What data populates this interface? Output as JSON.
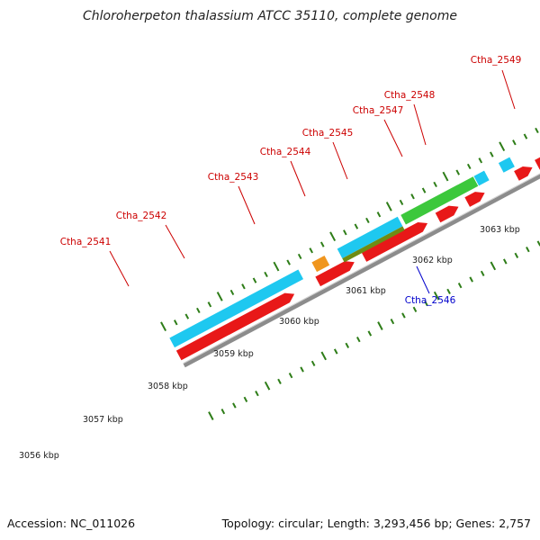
{
  "title": "Chloroherpeton thalassium ATCC 35110, complete genome",
  "footer": {
    "accession": "Accession: NC_011026",
    "summary": "Topology: circular; Length: 3,293,456 bp; Genes: 2,757"
  },
  "colors": {
    "background": "#ffffff",
    "backbone": "#8c8c8c",
    "tick": "#2e7d18",
    "label_red": "#cc0000",
    "label_blue": "#0000cc",
    "cds_red": "#e81818",
    "cyan": "#1ec8f0",
    "orange": "#f0961e",
    "green": "#3cc83c",
    "olive": "#6e8c14",
    "blue": "#1428e6",
    "slate": "#4682b4",
    "purple": "#5a5aa0",
    "silver": "#c8c8c8"
  },
  "kbp_labels": [
    "3056 kbp",
    "3057 kbp",
    "3058 kbp",
    "3059 kbp",
    "3060 kbp",
    "3061 kbp",
    "3062 kbp",
    "3063 kbp"
  ],
  "gene_labels": [
    {
      "name": "Ctha_2541",
      "color": "red"
    },
    {
      "name": "Ctha_2542",
      "color": "red"
    },
    {
      "name": "Ctha_2543",
      "color": "red"
    },
    {
      "name": "Ctha_2544",
      "color": "red"
    },
    {
      "name": "Ctha_2545",
      "color": "red"
    },
    {
      "name": "Ctha_2546",
      "color": "blue"
    },
    {
      "name": "Ctha_2547",
      "color": "red"
    },
    {
      "name": "Ctha_2548",
      "color": "red"
    },
    {
      "name": "Ctha_2549",
      "color": "red"
    }
  ]
}
